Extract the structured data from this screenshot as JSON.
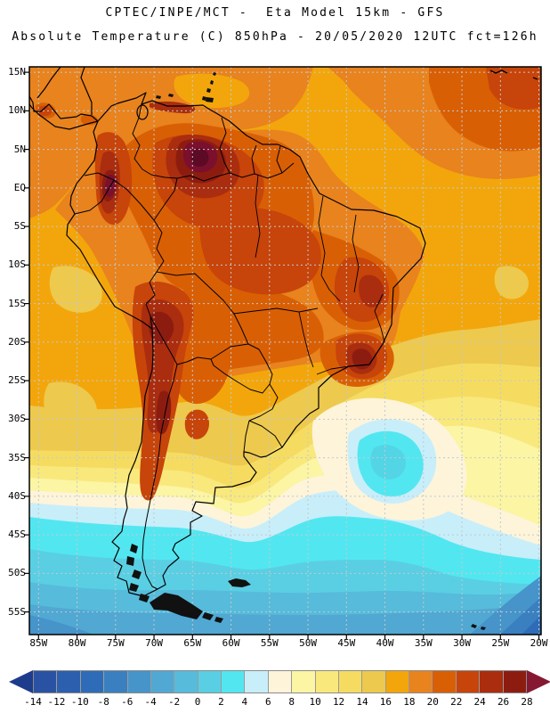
{
  "title": {
    "line1": "CPTEC/INPE/MCT -  Eta Model 15km - GFS",
    "line2": "Absolute Temperature (C) 850hPa - 20/05/2020 12UTC fct=126h"
  },
  "map": {
    "lat_ticks": [
      "15N",
      "10N",
      "5N",
      "EQ",
      "5S",
      "10S",
      "15S",
      "20S",
      "25S",
      "30S",
      "35S",
      "40S",
      "45S",
      "50S",
      "55S"
    ],
    "lon_ticks": [
      "85W",
      "80W",
      "75W",
      "70W",
      "65W",
      "60W",
      "55W",
      "50W",
      "45W",
      "40W",
      "35W",
      "30W",
      "25W",
      "20W"
    ],
    "grid_color": "#c2c9ce",
    "frame_color": "#000000",
    "coast_color": "#000000"
  },
  "colorbar": {
    "tick_labels": [
      "-14",
      "-12",
      "-10",
      "-8",
      "-6",
      "-4",
      "-2",
      "0",
      "2",
      "4",
      "6",
      "8",
      "10",
      "12",
      "14",
      "16",
      "18",
      "20",
      "22",
      "24",
      "26",
      "28"
    ],
    "segment_colors": [
      "#2a52a2",
      "#2c5fae",
      "#2f6cb7",
      "#3a80c1",
      "#4694c9",
      "#51a8d2",
      "#57bbdb",
      "#5acfe3",
      "#52e7f0",
      "#c8eefa",
      "#fdf4da",
      "#fbf5a4",
      "#f9e87c",
      "#f5dc61",
      "#edc94e",
      "#f3a60b",
      "#e8831e",
      "#d95f05",
      "#c7440a",
      "#a92d0e",
      "#8d1c10"
    ],
    "under_arrow_color": "#1e3c8c",
    "over_arrow_color": "#861832",
    "outline_color": "#8a8a8a"
  },
  "palette": {
    "c16": "#f3a60b",
    "c18": "#e8831e",
    "c20": "#d95f05",
    "c22": "#c7440a",
    "c24": "#a92d0e",
    "c26": "#8d1c10",
    "c28": "#7a0f2e",
    "c28core": "#5c0a26",
    "c14": "#edc94e",
    "c12": "#f5dc61",
    "c10": "#f9e87c",
    "c8": "#fbf5a4",
    "c6": "#fdf4da",
    "c4": "#c8eefa",
    "c2": "#52e7f0",
    "c1": "#53d5e6",
    "c0": "#5acfe3",
    "cm2": "#57bbdb",
    "cm4": "#51a8d2",
    "cm6": "#4694c9",
    "cm8": "#3a80c1",
    "cm10": "#2f6cb7",
    "ink": "#000000"
  }
}
